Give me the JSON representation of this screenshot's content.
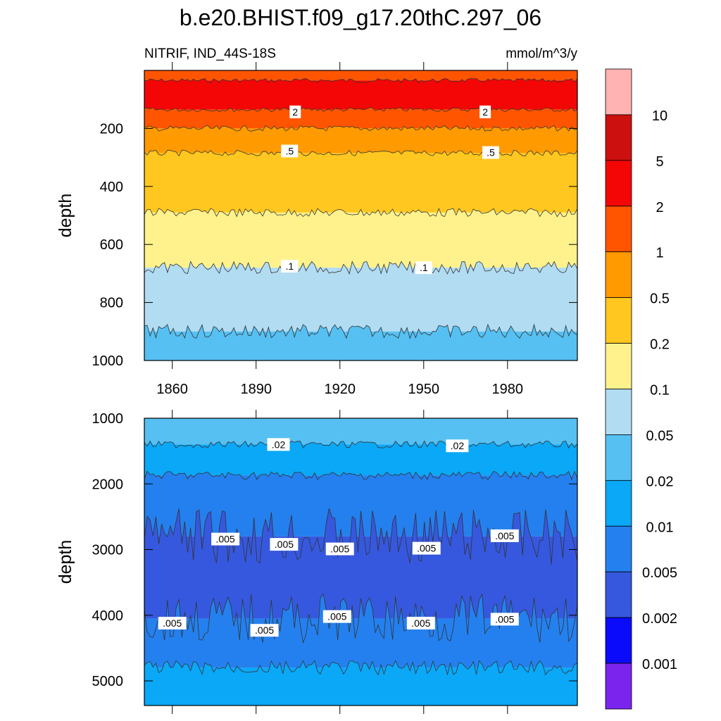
{
  "chart_data": {
    "type": "contour",
    "title": "b.e20.BHIST.f09_g17.20thC.297_06",
    "subtitle_left": "NITRIF, IND_44S-18S",
    "subtitle_right": "mmol/m^3/y",
    "colorbar": {
      "levels": [
        "10",
        "5",
        "2",
        "1",
        "0.5",
        "0.2",
        "0.1",
        "0.05",
        "0.02",
        "0.01",
        "0.005",
        "0.002",
        "0.001"
      ],
      "colors": [
        "#ffb3b3",
        "#cc1010",
        "#f50606",
        "#ff5500",
        "#ff9a00",
        "#ffc71f",
        "#fff28c",
        "#b2dcf2",
        "#56c0f2",
        "#0aa8f7",
        "#2480ee",
        "#3658de",
        "#0b0bfc",
        "#7a24ee"
      ]
    },
    "panels": [
      {
        "ylabel": "depth",
        "ylim": [
          0,
          1000
        ],
        "xlim": [
          1850,
          2005
        ],
        "xticks": [
          "1860",
          "1890",
          "1920",
          "1950",
          "1980"
        ],
        "yticks": [
          "200",
          "400",
          "600",
          "800",
          "1000"
        ],
        "bands": [
          {
            "from": 0,
            "to": 35,
            "value_range": "1-2",
            "color": "#ff5500"
          },
          {
            "from": 35,
            "to": 135,
            "value_range": "2-5",
            "color": "#f50606"
          },
          {
            "from": 135,
            "to": 200,
            "value_range": "1-2",
            "color": "#ff5500"
          },
          {
            "from": 200,
            "to": 285,
            "value_range": "0.5-1",
            "color": "#ff9a00"
          },
          {
            "from": 285,
            "to": 490,
            "value_range": "0.2-0.5",
            "color": "#ffc71f"
          },
          {
            "from": 490,
            "to": 680,
            "value_range": "0.1-0.2",
            "color": "#fff28c"
          },
          {
            "from": 680,
            "to": 900,
            "value_range": "0.05-0.1",
            "color": "#b2dcf2"
          },
          {
            "from": 900,
            "to": 1000,
            "value_range": "0.02-0.05",
            "color": "#56c0f2"
          }
        ],
        "contour_labels": [
          {
            "text": "2",
            "year": 1904,
            "depth": 143
          },
          {
            "text": "2",
            "year": 1972,
            "depth": 143
          },
          {
            "text": ".5",
            "year": 1902,
            "depth": 278
          },
          {
            "text": ".5",
            "year": 1974,
            "depth": 283
          },
          {
            "text": ".1",
            "year": 1902,
            "depth": 675
          },
          {
            "text": ".1",
            "year": 1950,
            "depth": 680
          }
        ]
      },
      {
        "ylabel": "depth",
        "ylim": [
          1000,
          5375
        ],
        "xlim": [
          1850,
          2005
        ],
        "yticks": [
          "1000",
          "2000",
          "3000",
          "4000",
          "5000"
        ],
        "bands": [
          {
            "from": 1000,
            "to": 1400,
            "value_range": "0.02-0.05",
            "color": "#56c0f2"
          },
          {
            "from": 1400,
            "to": 1870,
            "value_range": "0.01-0.02",
            "color": "#0aa8f7"
          },
          {
            "from": 1870,
            "to": 2800,
            "value_range": "0.005-0.01",
            "color": "#2480ee"
          },
          {
            "from": 2800,
            "to": 4050,
            "value_range": "0.002-0.005",
            "color": "#3658de"
          },
          {
            "from": 4050,
            "to": 4800,
            "value_range": "0.005-0.01",
            "color": "#2480ee"
          },
          {
            "from": 4800,
            "to": 5375,
            "value_range": "0.01-0.02",
            "color": "#0aa8f7"
          }
        ],
        "contour_labels": [
          {
            "text": ".02",
            "year": 1898,
            "depth": 1400
          },
          {
            "text": ".02",
            "year": 1962,
            "depth": 1420
          },
          {
            "text": ".005",
            "year": 1879,
            "depth": 2840
          },
          {
            "text": ".005",
            "year": 1900,
            "depth": 2920
          },
          {
            "text": ".005",
            "year": 1920,
            "depth": 2990
          },
          {
            "text": ".005",
            "year": 1951,
            "depth": 2980
          },
          {
            "text": ".005",
            "year": 1979,
            "depth": 2790
          },
          {
            "text": ".005",
            "year": 1860,
            "depth": 4120
          },
          {
            "text": ".005",
            "year": 1893,
            "depth": 4230
          },
          {
            "text": ".005",
            "year": 1919,
            "depth": 4020
          },
          {
            "text": ".005",
            "year": 1949,
            "depth": 4120
          },
          {
            "text": ".005",
            "year": 1979,
            "depth": 4060
          }
        ]
      }
    ]
  }
}
